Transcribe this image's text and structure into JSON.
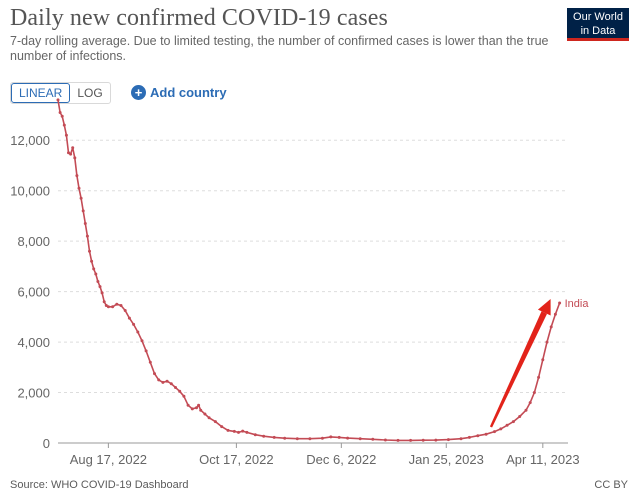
{
  "header": {
    "title": "Daily new confirmed COVID-19 cases",
    "subtitle": "7-day rolling average. Due to limited testing, the number of confirmed cases is lower than the true number of infections.",
    "logo_line1": "Our World",
    "logo_line2": "in Data"
  },
  "controls": {
    "linear_label": "LINEAR",
    "log_label": "LOG",
    "add_country_label": "Add country"
  },
  "colors": {
    "series": "#b13507",
    "line": "#c34b55",
    "arrow": "#e2231a",
    "grid": "#dddddd",
    "accent": "#2c6cb5"
  },
  "chart_data": {
    "type": "line",
    "title": "Daily new confirmed COVID-19 cases",
    "ylabel": "",
    "xlabel": "",
    "ylim": [
      0,
      13000
    ],
    "yticks": [
      0,
      2000,
      4000,
      6000,
      8000,
      10000,
      12000
    ],
    "ytick_labels": [
      "0",
      "2,000",
      "4,000",
      "6,000",
      "8,000",
      "10,000",
      "12,000"
    ],
    "xlim_day": [
      0,
      243
    ],
    "xticks": [
      {
        "day": 24,
        "label": "Aug 17, 2022"
      },
      {
        "day": 85,
        "label": "Oct 17, 2022"
      },
      {
        "day": 135,
        "label": "Dec 6, 2022"
      },
      {
        "day": 185,
        "label": "Jan 25, 2023"
      },
      {
        "day": 231,
        "label": "Apr 11, 2023"
      }
    ],
    "series": [
      {
        "name": "India",
        "label": "India",
        "points": [
          [
            0,
            13600
          ],
          [
            1,
            13100
          ],
          [
            2,
            12950
          ],
          [
            3,
            12600
          ],
          [
            4,
            12200
          ],
          [
            5,
            11500
          ],
          [
            6,
            11450
          ],
          [
            7,
            11700
          ],
          [
            8,
            11300
          ],
          [
            9,
            10600
          ],
          [
            10,
            10100
          ],
          [
            11,
            9700
          ],
          [
            12,
            9200
          ],
          [
            13,
            8700
          ],
          [
            14,
            8200
          ],
          [
            15,
            7600
          ],
          [
            16,
            7200
          ],
          [
            17,
            6900
          ],
          [
            18,
            6700
          ],
          [
            19,
            6400
          ],
          [
            20,
            6200
          ],
          [
            21,
            5950
          ],
          [
            22,
            5600
          ],
          [
            23,
            5450
          ],
          [
            24,
            5400
          ],
          [
            26,
            5400
          ],
          [
            28,
            5500
          ],
          [
            30,
            5450
          ],
          [
            32,
            5250
          ],
          [
            34,
            4950
          ],
          [
            36,
            4700
          ],
          [
            38,
            4400
          ],
          [
            40,
            4050
          ],
          [
            42,
            3650
          ],
          [
            44,
            3200
          ],
          [
            46,
            2750
          ],
          [
            48,
            2500
          ],
          [
            50,
            2400
          ],
          [
            52,
            2450
          ],
          [
            54,
            2350
          ],
          [
            56,
            2200
          ],
          [
            58,
            2050
          ],
          [
            60,
            1850
          ],
          [
            62,
            1500
          ],
          [
            64,
            1350
          ],
          [
            66,
            1400
          ],
          [
            67,
            1500
          ],
          [
            68,
            1300
          ],
          [
            70,
            1150
          ],
          [
            72,
            1000
          ],
          [
            75,
            850
          ],
          [
            78,
            650
          ],
          [
            81,
            500
          ],
          [
            84,
            460
          ],
          [
            86,
            420
          ],
          [
            88,
            470
          ],
          [
            90,
            420
          ],
          [
            94,
            330
          ],
          [
            98,
            270
          ],
          [
            103,
            220
          ],
          [
            108,
            190
          ],
          [
            114,
            170
          ],
          [
            120,
            170
          ],
          [
            126,
            190
          ],
          [
            130,
            240
          ],
          [
            134,
            220
          ],
          [
            138,
            195
          ],
          [
            144,
            170
          ],
          [
            150,
            145
          ],
          [
            156,
            120
          ],
          [
            162,
            105
          ],
          [
            168,
            105
          ],
          [
            174,
            110
          ],
          [
            180,
            115
          ],
          [
            186,
            135
          ],
          [
            192,
            170
          ],
          [
            196,
            220
          ],
          [
            200,
            290
          ],
          [
            204,
            350
          ],
          [
            208,
            450
          ],
          [
            211,
            560
          ],
          [
            214,
            700
          ],
          [
            217,
            850
          ],
          [
            220,
            1050
          ],
          [
            223,
            1300
          ],
          [
            225,
            1600
          ],
          [
            227,
            2000
          ],
          [
            229,
            2600
          ],
          [
            231,
            3300
          ],
          [
            233,
            4000
          ],
          [
            235,
            4600
          ],
          [
            237,
            5100
          ],
          [
            239,
            5550
          ]
        ]
      }
    ],
    "annotations": [
      "arrow pointing at India endpoint"
    ]
  },
  "footer": {
    "source": "Source: WHO COVID-19 Dashboard",
    "license": "CC BY"
  }
}
